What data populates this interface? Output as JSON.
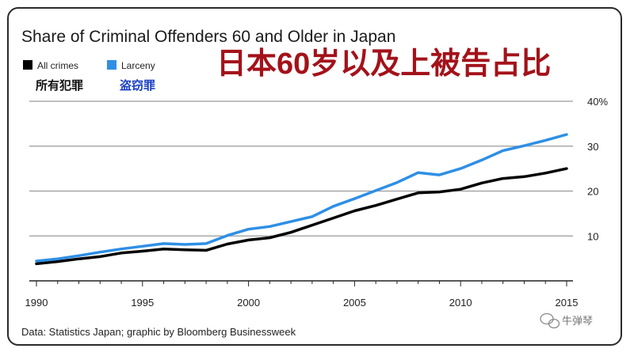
{
  "chart_data": {
    "type": "line",
    "title": "Share of Criminal Offenders 60 and Older in Japan",
    "title_cn": "日本60岁以及上被告占比",
    "x": [
      1990,
      1991,
      1992,
      1993,
      1994,
      1995,
      1996,
      1997,
      1998,
      1999,
      2000,
      2001,
      2002,
      2003,
      2004,
      2005,
      2006,
      2007,
      2008,
      2009,
      2010,
      2011,
      2012,
      2013,
      2014,
      2015
    ],
    "series": [
      {
        "name": "All crimes",
        "name_cn": "所有犯罪",
        "color": "#000000",
        "values": [
          3.8,
          4.3,
          4.9,
          5.4,
          6.2,
          6.6,
          7.1,
          6.9,
          6.8,
          8.2,
          9.1,
          9.6,
          10.8,
          12.4,
          14.0,
          15.6,
          16.8,
          18.2,
          19.6,
          19.8,
          20.4,
          21.8,
          22.8,
          23.2,
          24.0,
          25.0
        ]
      },
      {
        "name": "Larceny",
        "name_cn": "盗窃罪",
        "color": "#2e8fe5",
        "values": [
          4.4,
          4.9,
          5.6,
          6.4,
          7.1,
          7.7,
          8.3,
          8.1,
          8.3,
          10.1,
          11.5,
          12.1,
          13.2,
          14.3,
          16.6,
          18.3,
          20.1,
          21.9,
          24.1,
          23.6,
          25.0,
          26.9,
          29.0,
          30.1,
          31.3,
          32.6
        ]
      }
    ],
    "x_ticks": [
      "1990",
      "1995",
      "2000",
      "2005",
      "2010",
      "2015"
    ],
    "y_ticks": [
      {
        "value": 10,
        "label": "10"
      },
      {
        "value": 20,
        "label": "20"
      },
      {
        "value": 30,
        "label": "30"
      },
      {
        "value": 40,
        "label": "40%"
      }
    ],
    "ylim": [
      0,
      40
    ],
    "xlim": [
      1990,
      2015
    ],
    "grid": true,
    "legend_position": "top-left",
    "source": "Data: Statistics Japan; graphic by Bloomberg Businessweek",
    "watermark": "牛弹琴"
  }
}
